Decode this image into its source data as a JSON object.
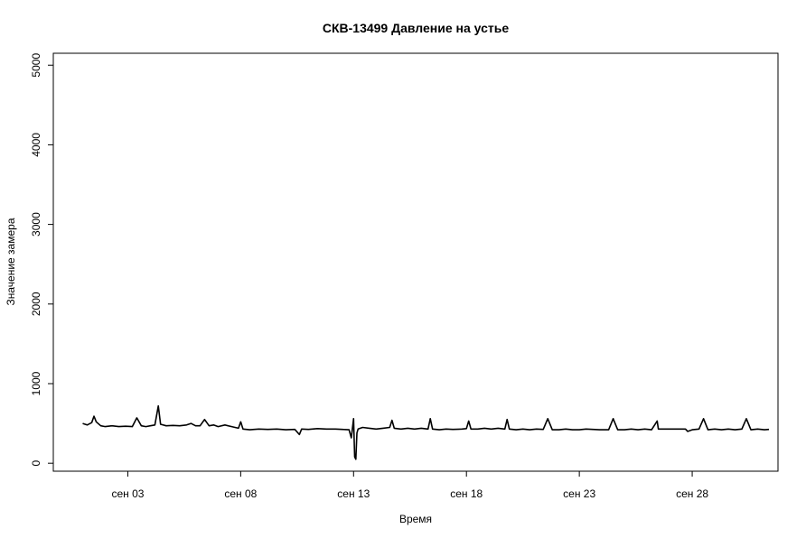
{
  "chart_data": {
    "type": "line",
    "title": "СКВ-13499 Давление на устье",
    "xlabel": "Время",
    "ylabel": "Значение замера",
    "xlim": [
      -1.3,
      30.8
    ],
    "ylim": [
      -100,
      5150
    ],
    "x_unit": "days since сен 01",
    "x_ticks": [
      {
        "x": 2,
        "label": "сен 03"
      },
      {
        "x": 7,
        "label": "сен 08"
      },
      {
        "x": 12,
        "label": "сен 13"
      },
      {
        "x": 17,
        "label": "сен 18"
      },
      {
        "x": 22,
        "label": "сен 23"
      },
      {
        "x": 27,
        "label": "сен 28"
      }
    ],
    "y_ticks": [
      0,
      1000,
      2000,
      3000,
      4000,
      5000
    ],
    "grid": false,
    "legend": "none",
    "series": [
      {
        "color": "#000000",
        "points": [
          [
            0.0,
            500
          ],
          [
            0.2,
            480
          ],
          [
            0.4,
            510
          ],
          [
            0.5,
            590
          ],
          [
            0.6,
            520
          ],
          [
            0.8,
            470
          ],
          [
            1.0,
            460
          ],
          [
            1.3,
            470
          ],
          [
            1.6,
            460
          ],
          [
            1.9,
            465
          ],
          [
            2.2,
            460
          ],
          [
            2.4,
            570
          ],
          [
            2.6,
            470
          ],
          [
            2.8,
            460
          ],
          [
            3.0,
            470
          ],
          [
            3.2,
            480
          ],
          [
            3.35,
            720
          ],
          [
            3.45,
            490
          ],
          [
            3.7,
            470
          ],
          [
            4.0,
            475
          ],
          [
            4.3,
            470
          ],
          [
            4.6,
            480
          ],
          [
            4.8,
            500
          ],
          [
            5.0,
            470
          ],
          [
            5.2,
            470
          ],
          [
            5.4,
            550
          ],
          [
            5.6,
            470
          ],
          [
            5.8,
            480
          ],
          [
            6.0,
            460
          ],
          [
            6.3,
            480
          ],
          [
            6.6,
            460
          ],
          [
            6.9,
            440
          ],
          [
            7.0,
            520
          ],
          [
            7.1,
            430
          ],
          [
            7.4,
            420
          ],
          [
            7.8,
            430
          ],
          [
            8.2,
            425
          ],
          [
            8.6,
            430
          ],
          [
            9.0,
            420
          ],
          [
            9.4,
            425
          ],
          [
            9.6,
            360
          ],
          [
            9.7,
            430
          ],
          [
            10.0,
            425
          ],
          [
            10.4,
            435
          ],
          [
            10.8,
            430
          ],
          [
            11.2,
            430
          ],
          [
            11.5,
            425
          ],
          [
            11.8,
            420
          ],
          [
            11.9,
            320
          ],
          [
            12.0,
            560
          ],
          [
            12.05,
            80
          ],
          [
            12.1,
            50
          ],
          [
            12.15,
            380
          ],
          [
            12.2,
            430
          ],
          [
            12.4,
            450
          ],
          [
            12.7,
            440
          ],
          [
            13.0,
            430
          ],
          [
            13.3,
            440
          ],
          [
            13.6,
            450
          ],
          [
            13.7,
            540
          ],
          [
            13.8,
            440
          ],
          [
            14.1,
            430
          ],
          [
            14.4,
            440
          ],
          [
            14.7,
            430
          ],
          [
            15.0,
            440
          ],
          [
            15.3,
            430
          ],
          [
            15.4,
            560
          ],
          [
            15.5,
            430
          ],
          [
            15.8,
            420
          ],
          [
            16.1,
            430
          ],
          [
            16.4,
            425
          ],
          [
            16.8,
            430
          ],
          [
            17.0,
            435
          ],
          [
            17.1,
            530
          ],
          [
            17.2,
            430
          ],
          [
            17.5,
            430
          ],
          [
            17.8,
            440
          ],
          [
            18.1,
            430
          ],
          [
            18.4,
            440
          ],
          [
            18.7,
            430
          ],
          [
            18.8,
            550
          ],
          [
            18.9,
            430
          ],
          [
            19.2,
            420
          ],
          [
            19.5,
            430
          ],
          [
            19.8,
            420
          ],
          [
            20.1,
            430
          ],
          [
            20.4,
            425
          ],
          [
            20.6,
            560
          ],
          [
            20.8,
            420
          ],
          [
            21.1,
            420
          ],
          [
            21.4,
            430
          ],
          [
            21.7,
            420
          ],
          [
            22.0,
            420
          ],
          [
            22.3,
            430
          ],
          [
            22.6,
            425
          ],
          [
            22.9,
            420
          ],
          [
            23.3,
            420
          ],
          [
            23.5,
            560
          ],
          [
            23.7,
            420
          ],
          [
            24.0,
            420
          ],
          [
            24.3,
            430
          ],
          [
            24.6,
            420
          ],
          [
            24.9,
            430
          ],
          [
            25.2,
            420
          ],
          [
            25.45,
            530
          ],
          [
            25.5,
            430
          ],
          [
            25.8,
            430
          ],
          [
            26.1,
            430
          ],
          [
            26.4,
            430
          ],
          [
            26.7,
            430
          ],
          [
            26.8,
            400
          ],
          [
            27.0,
            420
          ],
          [
            27.3,
            430
          ],
          [
            27.5,
            560
          ],
          [
            27.7,
            420
          ],
          [
            28.0,
            430
          ],
          [
            28.3,
            420
          ],
          [
            28.6,
            430
          ],
          [
            28.9,
            420
          ],
          [
            29.2,
            430
          ],
          [
            29.4,
            560
          ],
          [
            29.6,
            420
          ],
          [
            29.9,
            430
          ],
          [
            30.2,
            420
          ],
          [
            30.4,
            425
          ]
        ]
      }
    ]
  }
}
